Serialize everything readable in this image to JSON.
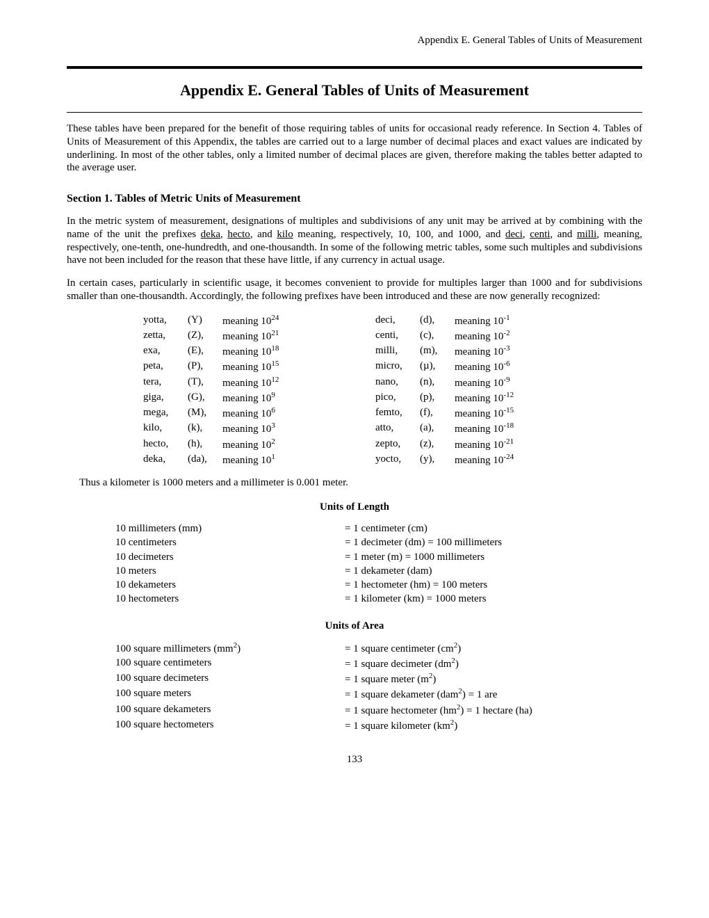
{
  "header": "Appendix E. General Tables of Units of Measurement",
  "title": "Appendix E.  General Tables of Units of Measurement",
  "intro": "These tables have been prepared for the benefit of those requiring tables of units for occasional ready reference.  In Section 4. Tables of Units of Measurement of this Appendix, the tables are carried out to a large number of decimal places and exact values are indicated by underlining.  In most of the other tables, only a limited number of decimal places are given, therefore making the tables better adapted to the average user.",
  "section1_title": "Section 1.  Tables of Metric Units of Measurement",
  "para1a": "In the metric system of measurement, designations of multiples and subdivisions of any unit may be arrived at by combining with the name of the unit the prefixes ",
  "deka": "deka",
  "comma1": ", ",
  "hecto": "hecto",
  "para1b": ", and ",
  "kilo": "kilo",
  "para1c": " meaning, respectively, 10, 100, and 1000, and ",
  "deci": "deci",
  "comma2": ", ",
  "centi": "centi",
  "para1d": ", and ",
  "milli": "milli",
  "para1e": ", meaning, respectively, one-tenth, one-hundredth, and one-thousandth.  In some of the following metric tables, some such multiples and subdivisions have not been included for the reason that these have little, if any currency in actual usage.",
  "para2": "In certain cases, particularly in scientific usage, it becomes convenient to provide for multiples larger than 1000 and for subdivisions smaller than one-thousandth.  Accordingly, the following prefixes have been introduced and these are now generally recognized:",
  "prefixes_left": [
    {
      "name": "yotta,",
      "sym": "(Y)",
      "exp": "24"
    },
    {
      "name": "zetta,",
      "sym": "(Z),",
      "exp": "21"
    },
    {
      "name": "exa,",
      "sym": "(E),",
      "exp": "18"
    },
    {
      "name": "peta,",
      "sym": "(P),",
      "exp": "15"
    },
    {
      "name": "tera,",
      "sym": "(T),",
      "exp": "12"
    },
    {
      "name": "giga,",
      "sym": "(G),",
      "exp": "9"
    },
    {
      "name": "mega,",
      "sym": "(M),",
      "exp": "6"
    },
    {
      "name": "kilo,",
      "sym": "(k),",
      "exp": "3"
    },
    {
      "name": "hecto,",
      "sym": "(h),",
      "exp": "2"
    },
    {
      "name": "deka,",
      "sym": "(da),",
      "exp": "1"
    }
  ],
  "prefixes_right": [
    {
      "name": "deci,",
      "sym": "(d),",
      "exp": "-1"
    },
    {
      "name": "centi,",
      "sym": "(c),",
      "exp": "-2"
    },
    {
      "name": "milli,",
      "sym": "(m),",
      "exp": "-3"
    },
    {
      "name": "micro,",
      "sym": "(µ),",
      "exp": "-6"
    },
    {
      "name": "nano,",
      "sym": "(n),",
      "exp": "-9"
    },
    {
      "name": "pico,",
      "sym": "(p),",
      "exp": "-12"
    },
    {
      "name": "femto,",
      "sym": "(f),",
      "exp": "-15"
    },
    {
      "name": "atto,",
      "sym": "(a),",
      "exp": "-18"
    },
    {
      "name": "zepto,",
      "sym": "(z),",
      "exp": "-21"
    },
    {
      "name": "yocto,",
      "sym": "(y),",
      "exp": "-24"
    }
  ],
  "meaning_word": "meaning 10",
  "thus_line": "Thus a kilometer is 1000 meters and a millimeter is 0.001 meter.",
  "length_title": "Units of Length",
  "length_rows": [
    {
      "l": "10 millimeters (mm)",
      "r": "= 1 centimeter (cm)"
    },
    {
      "l": "10 centimeters",
      "r": "= 1 decimeter (dm) = 100 millimeters"
    },
    {
      "l": "10 decimeters",
      "r": "= 1 meter (m) = 1000 millimeters"
    },
    {
      "l": "10 meters",
      "r": "= 1 dekameter (dam)"
    },
    {
      "l": "10 dekameters",
      "r": "= 1 hectometer (hm) = 100 meters"
    },
    {
      "l": "10 hectometers",
      "r": "= 1 kilometer (km) = 1000 meters"
    }
  ],
  "area_title": "Units of Area",
  "area_rows": [
    {
      "l_pre": "100 square millimeters (mm",
      "l_sup": "2",
      "l_post": ")",
      "r_pre": "= 1 square centimeter (cm",
      "r_sup": "2",
      "r_post": ")"
    },
    {
      "l_pre": "100 square centimeters",
      "l_sup": "",
      "l_post": "",
      "r_pre": "= 1 square decimeter (dm",
      "r_sup": "2",
      "r_post": ")"
    },
    {
      "l_pre": "100 square decimeters",
      "l_sup": "",
      "l_post": "",
      "r_pre": "= 1 square meter (m",
      "r_sup": "2",
      "r_post": ")"
    },
    {
      "l_pre": "100 square meters",
      "l_sup": "",
      "l_post": "",
      "r_pre": "= 1 square dekameter (dam",
      "r_sup": "2",
      "r_post": ") = 1 are"
    },
    {
      "l_pre": "100 square dekameters",
      "l_sup": "",
      "l_post": "",
      "r_pre": "= 1 square hectometer (hm",
      "r_sup": "2",
      "r_post": ") = 1 hectare (ha)"
    },
    {
      "l_pre": "100 square hectometers",
      "l_sup": "",
      "l_post": "",
      "r_pre": "= 1 square kilometer (km",
      "r_sup": "2",
      "r_post": ")"
    }
  ],
  "pagenum": "133"
}
